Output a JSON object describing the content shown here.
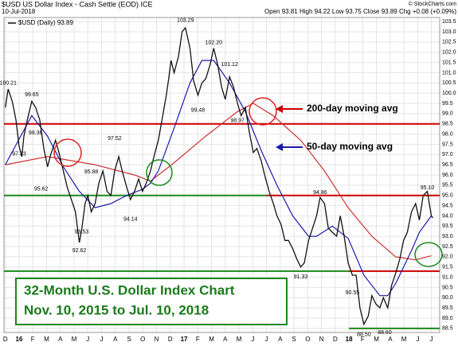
{
  "chart_data": {
    "type": "line",
    "title": "$USD US Dollar Index - Cash Settle (EOD) ICE",
    "date": "10-Jul-2018",
    "quote": "Open 93.81 High 94.22 Low 93.75 Close 93.89 Chg +0.08 (+0.09%)",
    "source": "© StockCharts.com",
    "legend_label": "$USD (Daily) 93.89",
    "box_title": "32-Month U.S. Dollar Index Chart",
    "box_subtitle": "Nov. 10, 2015 to Jul. 10, 2018",
    "annotations": [
      {
        "text": "200-day moving avg",
        "color": "#cc0000"
      },
      {
        "text": "50-day moving avg",
        "color": "#1a1aaa"
      }
    ],
    "grid": true,
    "xlim": [
      -0.1,
      31.6
    ],
    "xticks": [
      {
        "value": 0,
        "label": "D"
      },
      {
        "value": 1,
        "label": "16"
      },
      {
        "value": 2,
        "label": "F"
      },
      {
        "value": 3,
        "label": "M"
      },
      {
        "value": 4,
        "label": "A"
      },
      {
        "value": 5,
        "label": "M"
      },
      {
        "value": 6,
        "label": "J"
      },
      {
        "value": 7,
        "label": "J"
      },
      {
        "value": 8,
        "label": "A"
      },
      {
        "value": 9,
        "label": "S"
      },
      {
        "value": 10,
        "label": "O"
      },
      {
        "value": 11,
        "label": "N"
      },
      {
        "value": 12,
        "label": "D"
      },
      {
        "value": 13,
        "label": "17"
      },
      {
        "value": 14,
        "label": "F"
      },
      {
        "value": 15,
        "label": "M"
      },
      {
        "value": 16,
        "label": "A"
      },
      {
        "value": 17,
        "label": "M"
      },
      {
        "value": 18,
        "label": "J"
      },
      {
        "value": 19,
        "label": "J"
      },
      {
        "value": 20,
        "label": "A"
      },
      {
        "value": 21,
        "label": "S"
      },
      {
        "value": 22,
        "label": "O"
      },
      {
        "value": 23,
        "label": "N"
      },
      {
        "value": 24,
        "label": "D"
      },
      {
        "value": 25,
        "label": "18"
      },
      {
        "value": 26,
        "label": "F"
      },
      {
        "value": 27,
        "label": "M"
      },
      {
        "value": 28,
        "label": "A"
      },
      {
        "value": 29,
        "label": "M"
      },
      {
        "value": 30,
        "label": "J"
      },
      {
        "value": 31,
        "label": "J"
      }
    ],
    "ylim": [
      88.3,
      103.7
    ],
    "yticks": [
      88.5,
      {
        "value": 89,
        "label": "89.0"
      },
      89.5,
      {
        "value": 90,
        "label": "90.0"
      },
      90.5,
      {
        "value": 91,
        "label": "91.0"
      },
      91.5,
      {
        "value": 92,
        "label": "92.0"
      },
      92.5,
      {
        "value": 93,
        "label": "93.0"
      },
      93.5,
      {
        "value": 94,
        "label": "94.0"
      },
      94.5,
      {
        "value": 95,
        "label": "95.0"
      },
      95.5,
      {
        "value": 96,
        "label": "96.0"
      },
      96.5,
      {
        "value": 97,
        "label": "97.0"
      },
      97.5,
      {
        "value": 98,
        "label": "98.0"
      },
      98.5,
      {
        "value": 99,
        "label": "99.0"
      },
      99.5,
      {
        "value": 100,
        "label": "100.0"
      },
      100.5,
      {
        "value": 101,
        "label": "101.0"
      },
      101.5,
      {
        "value": 102,
        "label": "102.0"
      },
      102.5,
      {
        "value": 103,
        "label": "103.0"
      },
      103.5
    ],
    "series": [
      {
        "name": "$USD",
        "color": "#111111",
        "x": [
          0,
          0.2,
          0.5,
          0.77,
          1.0,
          1.2,
          1.35,
          1.6,
          1.92,
          2.2,
          2.5,
          2.8,
          3.07,
          3.3,
          3.65,
          3.9,
          4.22,
          4.5,
          4.8,
          5.1,
          5.38,
          5.55,
          5.8,
          6.0,
          6.25,
          6.53,
          6.8,
          7.1,
          7.4,
          7.68,
          7.95,
          8.25,
          8.5,
          8.83,
          9.1,
          9.4,
          9.7,
          9.98,
          10.25,
          10.56,
          10.85,
          11.13,
          11.4,
          11.71,
          11.9,
          12.05,
          12.28,
          12.6,
          12.86,
          13.1,
          13.43,
          13.7,
          14.01,
          14.3,
          14.58,
          14.9,
          15.16,
          15.45,
          15.73,
          16.0,
          16.31,
          16.6,
          16.89,
          17.15,
          17.46,
          17.75,
          18.04,
          18.3,
          18.61,
          18.9,
          19.19,
          19.5,
          19.76,
          20.05,
          20.34,
          20.6,
          20.91,
          21.2,
          21.49,
          21.75,
          22.06,
          22.35,
          22.64,
          22.9,
          23.22,
          23.5,
          23.79,
          24.1,
          24.37,
          24.65,
          24.94,
          25.25,
          25.52,
          25.8,
          26.09,
          26.4,
          26.67,
          26.95,
          27.25,
          27.5,
          27.82,
          28.1,
          28.4,
          28.7,
          28.97,
          29.25,
          29.55,
          29.85,
          30.12,
          30.4,
          30.7,
          30.99,
          31.1
        ],
        "values": [
          99.3,
          100.2,
          99.6,
          98.7,
          97.4,
          96.9,
          97.9,
          98.7,
          99.6,
          99.3,
          98.7,
          97.3,
          96.4,
          97.0,
          97.7,
          97.1,
          96.2,
          95.4,
          94.8,
          94.2,
          92.7,
          93.3,
          94.6,
          95.0,
          94.2,
          94.6,
          95.6,
          96.2,
          95.2,
          95.0,
          96.2,
          96.9,
          96.2,
          95.4,
          94.8,
          95.2,
          95.8,
          95.2,
          95.6,
          96.2,
          97.0,
          97.7,
          98.7,
          99.9,
          100.8,
          101.6,
          101.0,
          101.8,
          103.0,
          103.2,
          102.2,
          100.6,
          99.9,
          100.5,
          100.7,
          101.4,
          102.2,
          101.4,
          100.3,
          99.7,
          100.8,
          100.3,
          99.5,
          98.9,
          99.3,
          98.1,
          97.1,
          97.3,
          96.7,
          95.9,
          95.2,
          94.6,
          94.0,
          93.6,
          92.8,
          92.8,
          92.4,
          91.9,
          91.5,
          91.7,
          92.8,
          93.4,
          94.0,
          94.9,
          94.6,
          93.4,
          93.2,
          93.0,
          94.0,
          93.0,
          91.7,
          91.1,
          91.1,
          89.5,
          88.7,
          89.1,
          90.1,
          89.7,
          89.5,
          90.0,
          89.5,
          90.6,
          91.2,
          91.9,
          92.8,
          93.2,
          94.2,
          94.6,
          93.8,
          95.0,
          95.2,
          94.0,
          93.9
        ]
      },
      {
        "name": "50-day moving avg",
        "color": "#1a1aaa",
        "x": [
          0,
          0.8,
          1.92,
          3.07,
          4.22,
          5.38,
          6.53,
          7.68,
          8.83,
          9.98,
          10.56,
          11.13,
          12.28,
          13.43,
          14.3,
          15.16,
          16.31,
          17.46,
          18.61,
          19.76,
          20.91,
          22.06,
          22.64,
          23.79,
          24.94,
          26.09,
          27.25,
          27.82,
          28.4,
          29.55,
          30.12,
          30.99
        ],
        "values": [
          96.5,
          97.5,
          98.9,
          97.9,
          96.4,
          95.2,
          94.4,
          94.6,
          95.0,
          95.3,
          95.6,
          96.2,
          98.3,
          100.5,
          101.6,
          101.6,
          100.5,
          99.1,
          97.2,
          95.5,
          94.0,
          93.0,
          93.0,
          93.5,
          92.9,
          91.1,
          90.1,
          90.1,
          90.7,
          92.3,
          93.2,
          94.0
        ]
      },
      {
        "name": "200-day moving avg",
        "color": "#cc3333",
        "x": [
          0,
          3.07,
          6.53,
          9.4,
          10.56,
          12.28,
          14.58,
          16.89,
          18.04,
          19.48,
          21.49,
          23.22,
          24.94,
          26.67,
          28.4,
          29.84,
          30.99
        ],
        "values": [
          96.5,
          96.9,
          96.5,
          96.0,
          95.7,
          96.6,
          97.9,
          99.1,
          99.5,
          98.9,
          97.7,
          96.2,
          94.4,
          93.0,
          92.0,
          91.85,
          92.05
        ]
      }
    ],
    "point_labels": [
      {
        "x": 0.2,
        "value": 100.21,
        "label": "100.21"
      },
      {
        "x": 1.0,
        "value": 97.33,
        "label": "97.33"
      },
      {
        "x": 1.92,
        "value": 99.65,
        "label": "99.65"
      },
      {
        "x": 2.2,
        "value": 98.36,
        "label": "98.36"
      },
      {
        "x": 2.6,
        "value": 95.62,
        "label": "95.62"
      },
      {
        "x": 5.38,
        "value": 92.62,
        "label": "92.62"
      },
      {
        "x": 5.55,
        "value": 93.53,
        "label": "93.53"
      },
      {
        "x": 6.25,
        "value": 95.88,
        "label": "95.88"
      },
      {
        "x": 7.95,
        "value": 97.52,
        "label": "97.52"
      },
      {
        "x": 9.1,
        "value": 94.14,
        "label": "94.14"
      },
      {
        "x": 13.1,
        "value": 103.29,
        "label": "103.29"
      },
      {
        "x": 14.01,
        "value": 99.48,
        "label": "99.48"
      },
      {
        "x": 15.16,
        "value": 102.2,
        "label": "102.20"
      },
      {
        "x": 16.31,
        "value": 101.12,
        "label": "101.12"
      },
      {
        "x": 16.89,
        "value": 98.97,
        "label": "98.97"
      },
      {
        "x": 21.49,
        "value": 91.33,
        "label": "91.33"
      },
      {
        "x": 22.9,
        "value": 94.86,
        "label": "94.86"
      },
      {
        "x": 25.25,
        "value": 90.55,
        "label": "90.55"
      },
      {
        "x": 26.09,
        "value": 88.5,
        "label": "88.50"
      },
      {
        "x": 27.6,
        "value": 88.6,
        "label": "88.60"
      },
      {
        "x": 30.7,
        "value": 95.1,
        "label": "95.10"
      }
    ],
    "levels": [
      {
        "value": 98.5,
        "color": "#cc0000",
        "from": -0.1,
        "to": 31.6
      },
      {
        "value": 95,
        "color": "#1a8a1a",
        "from": -0.1,
        "to": 19
      },
      {
        "value": 95,
        "color": "#cc0000",
        "from": 19,
        "to": 31.6
      },
      {
        "value": 91.3,
        "color": "#1a8a1a",
        "from": -0.1,
        "to": 25
      },
      {
        "value": 91.3,
        "color": "#cc0000",
        "from": 25,
        "to": 31.6
      },
      {
        "value": 88.5,
        "color": "#1a8a1a",
        "from": 25,
        "to": 31.6
      }
    ]
  }
}
